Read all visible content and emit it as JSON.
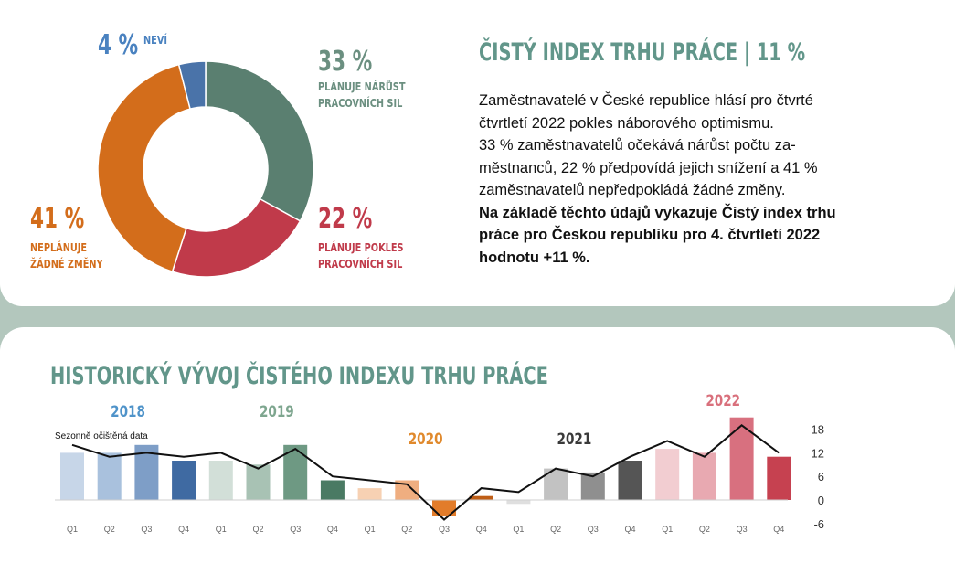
{
  "donut": {
    "segments": [
      {
        "key": "increase",
        "pct": "33 %",
        "value": 33,
        "label": [
          "PLÁNUJE NÁRŮST",
          "PRACOVNÍCH SIL"
        ],
        "color": "#5a7f70"
      },
      {
        "key": "decrease",
        "pct": "22 %",
        "value": 22,
        "label": [
          "PLÁNUJE POKLES",
          "PRACOVNÍCH SIL"
        ],
        "color": "#c03a4a"
      },
      {
        "key": "nochange",
        "pct": "41 %",
        "value": 41,
        "label": [
          "NEPLÁNUJE",
          "ŽÁDNÉ ZMĚNY"
        ],
        "color": "#d36d1b"
      },
      {
        "key": "unknown",
        "pct": "4 %",
        "value": 4,
        "label": [
          "NEVÍ"
        ],
        "color": "#4a73a9"
      }
    ]
  },
  "summary": {
    "title": "ČISTÝ INDEX TRHU PRÁCE | 11 %",
    "lines": [
      "Zaměstnavatelé v České republice hlásí pro čtvrté",
      "čtvrtletí 2022 pokles náborového optimismu.",
      "33 % zaměstnavatelů očekává nárůst počtu za-",
      "městnanců, 22 % předpovídá jejich snížení a 41 %",
      "zaměstnavatelů nepředpokládá žádné změny."
    ],
    "bold_lines": [
      "Na základě těchto údajů vykazuje Čistý index trhu",
      "práce pro Českou republiku pro 4. čtvrtletí 2022",
      "hodnotu +11 %."
    ]
  },
  "history": {
    "title": "HISTORICKÝ VÝVOJ ČISTÉHO INDEXU TRHU PRÁCE"
  },
  "chart_data": {
    "type": "bar",
    "categories": [
      "Q1",
      "Q2",
      "Q3",
      "Q4",
      "Q1",
      "Q2",
      "Q3",
      "Q4",
      "Q1",
      "Q2",
      "Q3",
      "Q4",
      "Q1",
      "Q2",
      "Q3",
      "Q4",
      "Q1",
      "Q2",
      "Q3",
      "Q4"
    ],
    "years": [
      {
        "label": "2018",
        "color": "#4f93c9"
      },
      {
        "label": "2019",
        "color": "#7ea68f"
      },
      {
        "label": "2020",
        "color": "#e0892c"
      },
      {
        "label": "2021",
        "color": "#3a3a3a"
      },
      {
        "label": "2022",
        "color": "#d9707c"
      }
    ],
    "series": [
      {
        "values": [
          12,
          12,
          14,
          10,
          10,
          9,
          14,
          5,
          3,
          5,
          -4,
          1,
          -1,
          8,
          7,
          10,
          13,
          12,
          21,
          11
        ],
        "colors": [
          "#c7d6e8",
          "#a9c1dd",
          "#7e9ec7",
          "#3f6aa2",
          "#d2dfd8",
          "#a8c2b4",
          "#6e9983",
          "#4a7a63",
          "#f7d1b3",
          "#efae80",
          "#e27c2a",
          "#bf5e16",
          "#dfdfdf",
          "#c2c2c2",
          "#8f8f8f",
          "#555555",
          "#f2cdd1",
          "#e8a9b1",
          "#d8707f",
          "#c64150"
        ]
      },
      {
        "name": "Sezonně očištěná data",
        "type": "line",
        "values": [
          14,
          11,
          12,
          11,
          12,
          8,
          13,
          6,
          5,
          4,
          -5,
          3,
          2,
          8,
          6,
          11,
          15,
          11,
          19,
          12
        ]
      }
    ],
    "y_ticks": [
      18,
      12,
      6,
      0,
      -6
    ],
    "ylim": [
      -6,
      18
    ]
  }
}
